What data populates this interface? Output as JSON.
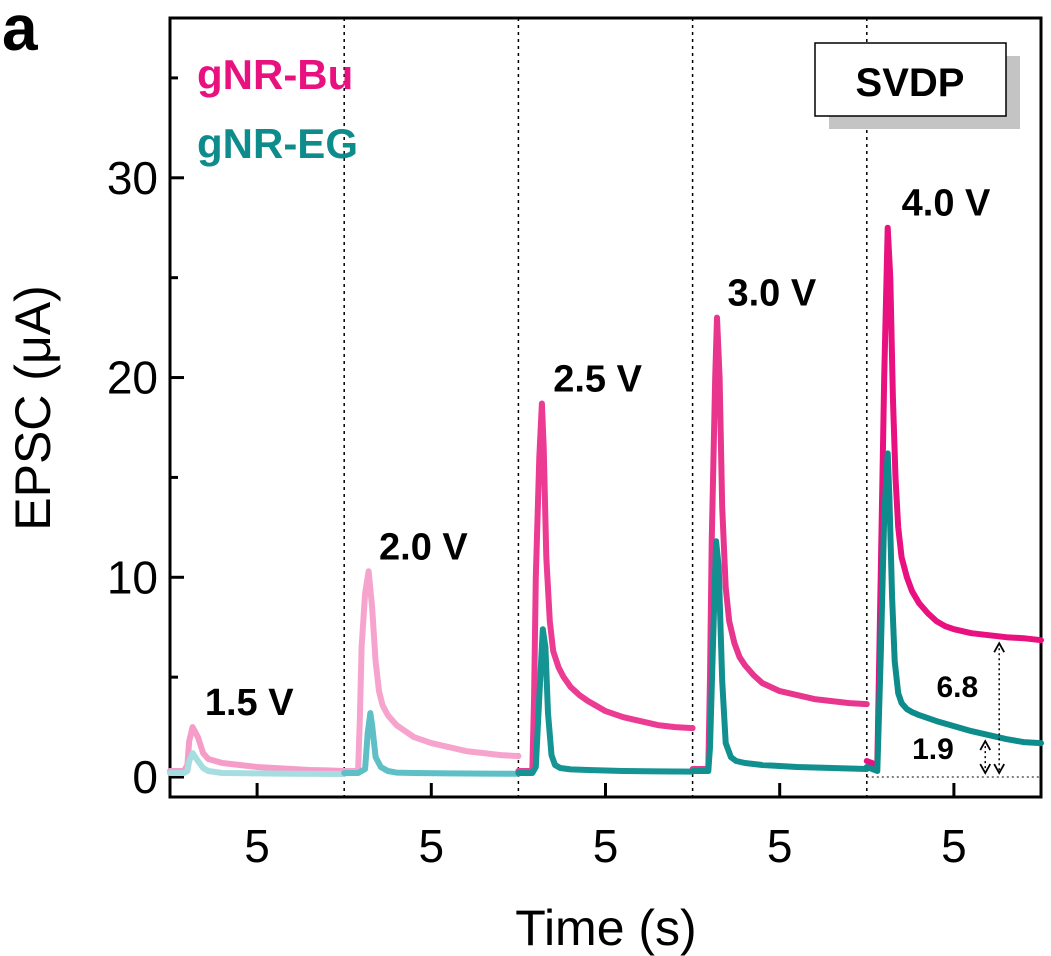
{
  "panel_label": "a",
  "badge": "SVDP",
  "colors": {
    "bu": "#e8117f",
    "eg": "#0e8c8c",
    "bu_levels": [
      "#f59cc9",
      "#f6a4cd",
      "#ec3b93",
      "#e8368f",
      "#e8117f"
    ],
    "eg_levels": [
      "#a6dde0",
      "#5ebfc6",
      "#169494",
      "#129090",
      "#0e8c8c"
    ]
  },
  "chart_data": {
    "type": "line",
    "title": "",
    "xlabel": "Time (s)",
    "ylabel": "EPSC (μA)",
    "ylim": [
      -1,
      38
    ],
    "yticks": [
      0,
      10,
      20,
      30
    ],
    "legend": [
      "gNR-Bu",
      "gNR-EG"
    ],
    "legend_placement": "top-left",
    "panels": [
      {
        "voltage": "1.5 V",
        "xtick": "5",
        "series": [
          {
            "name": "gNR-Bu",
            "x": [
              0,
              0.8,
              1.0,
              1.1,
              1.3,
              1.6,
              1.9,
              2.2,
              3,
              4,
              5,
              6,
              7,
              8,
              9,
              10
            ],
            "y": [
              0.3,
              0.3,
              0.6,
              1.8,
              2.5,
              2.0,
              1.2,
              0.9,
              0.7,
              0.6,
              0.5,
              0.45,
              0.4,
              0.35,
              0.33,
              0.3
            ]
          },
          {
            "name": "gNR-EG",
            "x": [
              0,
              0.8,
              1.0,
              1.1,
              1.3,
              1.6,
              1.9,
              2.2,
              3,
              5,
              7,
              10
            ],
            "y": [
              0.2,
              0.2,
              0.3,
              0.8,
              1.2,
              0.8,
              0.45,
              0.3,
              0.2,
              0.18,
              0.16,
              0.15
            ]
          }
        ]
      },
      {
        "voltage": "2.0 V",
        "xtick": "5",
        "series": [
          {
            "name": "gNR-Bu",
            "x": [
              0,
              0.8,
              0.9,
              1.0,
              1.2,
              1.4,
              1.6,
              1.8,
              2.0,
              2.2,
              2.5,
              3,
              3.5,
              4,
              5,
              6,
              7,
              8,
              9,
              10
            ],
            "y": [
              0.3,
              0.3,
              3,
              6.5,
              9.2,
              10.3,
              8.5,
              5.8,
              4.3,
              3.6,
              3.1,
              2.6,
              2.3,
              2.0,
              1.7,
              1.5,
              1.3,
              1.2,
              1.1,
              1.05
            ]
          },
          {
            "name": "gNR-EG",
            "x": [
              0,
              0.8,
              1.2,
              1.35,
              1.5,
              1.6,
              1.8,
              2.1,
              2.5,
              3,
              4,
              6,
              8,
              10
            ],
            "y": [
              0.2,
              0.2,
              0.4,
              2.2,
              3.2,
              2.6,
              1.0,
              0.5,
              0.3,
              0.22,
              0.2,
              0.18,
              0.17,
              0.16
            ]
          }
        ]
      },
      {
        "voltage": "2.5 V",
        "xtick": "5",
        "series": [
          {
            "name": "gNR-Bu",
            "x": [
              0,
              0.8,
              0.9,
              1.0,
              1.2,
              1.35,
              1.45,
              1.6,
              1.8,
              2.0,
              2.3,
              2.6,
              3,
              3.5,
              4,
              5,
              6,
              7,
              8,
              9,
              10
            ],
            "y": [
              0.3,
              0.3,
              4,
              10,
              16,
              18.7,
              16.5,
              11,
              7.8,
              6.3,
              5.5,
              5.0,
              4.5,
              4.1,
              3.8,
              3.3,
              3.0,
              2.8,
              2.6,
              2.5,
              2.45
            ]
          },
          {
            "name": "gNR-EG",
            "x": [
              0,
              0.8,
              1.0,
              1.2,
              1.4,
              1.55,
              1.7,
              1.9,
              2.1,
              2.4,
              3,
              4,
              6,
              8,
              10
            ],
            "y": [
              0.2,
              0.2,
              0.5,
              4.0,
              7.4,
              6.5,
              3.2,
              1.1,
              0.6,
              0.45,
              0.38,
              0.35,
              0.3,
              0.28,
              0.27
            ]
          }
        ]
      },
      {
        "voltage": "3.0 V",
        "xtick": "5",
        "series": [
          {
            "name": "gNR-Bu",
            "x": [
              0,
              0.9,
              1.0,
              1.1,
              1.3,
              1.4,
              1.55,
              1.7,
              1.9,
              2.1,
              2.4,
              2.7,
              3,
              3.5,
              4,
              5,
              6,
              7,
              8,
              9,
              10
            ],
            "y": [
              0.4,
              0.4,
              5,
              12,
              20,
              23.0,
              20,
              13.5,
              9.5,
              7.8,
              6.7,
              6.0,
              5.6,
              5.1,
              4.7,
              4.3,
              4.1,
              3.9,
              3.8,
              3.7,
              3.65
            ]
          },
          {
            "name": "gNR-EG",
            "x": [
              0,
              0.9,
              1.0,
              1.2,
              1.35,
              1.5,
              1.7,
              1.9,
              2.2,
              2.5,
              3,
              4,
              6,
              8,
              10
            ],
            "y": [
              0.3,
              0.3,
              1.5,
              7.5,
              11.8,
              10.5,
              4.8,
              1.7,
              1.0,
              0.8,
              0.7,
              0.6,
              0.5,
              0.45,
              0.4
            ]
          }
        ]
      },
      {
        "voltage": "4.0 V",
        "xtick": "5",
        "series": [
          {
            "name": "gNR-Bu",
            "x": [
              0,
              0.6,
              0.8,
              1.0,
              1.2,
              1.35,
              1.5,
              1.65,
              1.8,
              2.0,
              2.3,
              2.6,
              3,
              3.5,
              4,
              4.5,
              5,
              6,
              7,
              8,
              9,
              10
            ],
            "y": [
              0.8,
              0.6,
              10,
              20,
              27.5,
              25,
              19,
              15,
              12.5,
              11,
              10,
              9.3,
              8.7,
              8.2,
              7.8,
              7.55,
              7.4,
              7.2,
              7.1,
              7.0,
              6.95,
              6.85
            ]
          },
          {
            "name": "gNR-EG",
            "x": [
              0,
              0.6,
              0.8,
              1.0,
              1.2,
              1.3,
              1.45,
              1.6,
              1.8,
              2.0,
              2.3,
              2.6,
              3,
              3.5,
              4,
              5,
              6,
              7,
              8,
              9,
              10
            ],
            "y": [
              0.5,
              0.3,
              6,
              13,
              16.2,
              14,
              9,
              5.8,
              4.2,
              3.7,
              3.4,
              3.25,
              3.1,
              2.95,
              2.8,
              2.55,
              2.3,
              2.1,
              1.9,
              1.75,
              1.7
            ]
          }
        ]
      }
    ],
    "annotations": [
      {
        "text": "6.8",
        "y_from": 0,
        "y_to": 6.8
      },
      {
        "text": "1.9",
        "y_from": 0,
        "y_to": 1.9
      }
    ]
  }
}
